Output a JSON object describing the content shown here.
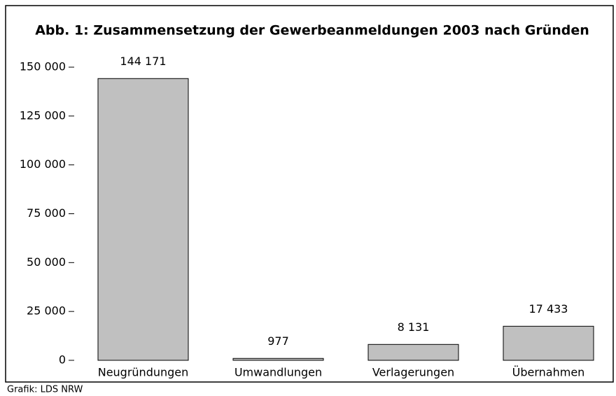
{
  "chart_data": {
    "type": "bar",
    "title": "Abb. 1: Zusammensetzung der Gewerbeanmeldungen 2003 nach Gründen",
    "categories": [
      "Neugründungen",
      "Umwandlungen",
      "Verlagerungen",
      "Übernahmen"
    ],
    "values": [
      144171,
      977,
      8131,
      17433
    ],
    "value_labels": [
      "144 171",
      "977",
      "8 131",
      "17 433"
    ],
    "color": "#c0c0c0",
    "ylim": [
      0,
      150000
    ],
    "yticks": [
      0,
      {
        "value": 25000,
        "label": "25 000"
      },
      {
        "value": 50000,
        "label": "50 000"
      },
      {
        "value": 75000,
        "label": "75 000"
      },
      {
        "value": 100000,
        "label": "100 000"
      },
      {
        "value": 125000,
        "label": "125 000"
      },
      {
        "value": 150000,
        "label": "150 000"
      }
    ],
    "source": "Grafik: LDS NRW"
  }
}
